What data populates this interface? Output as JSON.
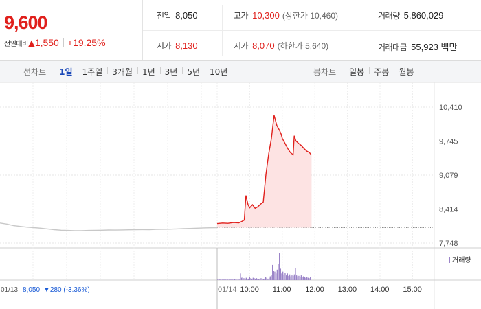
{
  "quote": {
    "price": "9,600",
    "change_label": "전일대비",
    "change_arrow": "▲",
    "change_amount": "1,550",
    "change_percent": "+19.25%"
  },
  "stats": {
    "prev_close": {
      "label": "전일",
      "value": "8,050"
    },
    "open": {
      "label": "시가",
      "value": "8,130"
    },
    "high": {
      "label": "고가",
      "value": "10,300",
      "limit": "(상한가 10,460)"
    },
    "low": {
      "label": "저가",
      "value": "8,070",
      "limit": "(하한가 5,640)"
    },
    "volume": {
      "label": "거래량",
      "value": "5,860,029"
    },
    "amount": {
      "label": "거래대금",
      "value": "55,923 백만"
    }
  },
  "tabs": {
    "line_label": "선차트",
    "line_tabs": [
      "1일",
      "1주일",
      "3개월",
      "1년",
      "3년",
      "5년",
      "10년"
    ],
    "active_line_tab": "1일",
    "candle_label": "봉차트",
    "candle_tabs": [
      "일봉",
      "주봉",
      "월봉"
    ]
  },
  "colors": {
    "up": "#e0201c",
    "down": "#1a5bd6",
    "prev_line": "#c8c8c8",
    "area_fill": "#fde3e3",
    "volume_bar": "#9b84c8"
  },
  "chart_data": {
    "type": "line",
    "y_ticks": [
      "10,410",
      "9,745",
      "9,079",
      "8,414",
      "7,748"
    ],
    "ylim": [
      7748,
      10410
    ],
    "reference_value": 8050,
    "x_ticks": [
      "01/14",
      "10:00",
      "11:00",
      "12:00",
      "13:00",
      "14:00",
      "15:00"
    ],
    "previous_day": {
      "date": "01/13",
      "close": "8,050",
      "change": "▼280 (-3.36%)",
      "values": [
        8140,
        8120,
        8090,
        8075,
        8060,
        8050,
        8040,
        8025,
        8010,
        8000,
        7995,
        7990,
        7992,
        7995,
        7998,
        8000,
        8003,
        8002,
        8005,
        8008,
        8010,
        8012,
        8010,
        8015,
        8018,
        8020,
        8025,
        8030,
        8035,
        8040,
        8045,
        8048,
        8050
      ]
    },
    "today": {
      "x_minutes": [
        0,
        10,
        20,
        30,
        40,
        45,
        50,
        53,
        57,
        60,
        65,
        70,
        75,
        80,
        85,
        90,
        95,
        100,
        105,
        110,
        115,
        118,
        120,
        125,
        130,
        135,
        140,
        142,
        145,
        150,
        155,
        160,
        165,
        170,
        173
      ],
      "values": [
        8130,
        8140,
        8135,
        8150,
        8145,
        8170,
        8200,
        8680,
        8500,
        8440,
        8500,
        8430,
        8460,
        8510,
        8550,
        9100,
        9500,
        9800,
        10250,
        10050,
        9950,
        9880,
        9800,
        9700,
        9600,
        9520,
        9480,
        9850,
        9750,
        9700,
        9660,
        9600,
        9550,
        9520,
        9480
      ]
    },
    "legend": "거래량",
    "volume": [
      1,
      1,
      2,
      1,
      1,
      2,
      1,
      1,
      1,
      1,
      1,
      2,
      1,
      1,
      1,
      2,
      1,
      1,
      2,
      1,
      14,
      5,
      7,
      4,
      3,
      5,
      2,
      3,
      6,
      4,
      3,
      5,
      4,
      3,
      4,
      3,
      2,
      3,
      4,
      3,
      2,
      3,
      6,
      4,
      3,
      5,
      8,
      10,
      32,
      20,
      18,
      14,
      22,
      34,
      58,
      24,
      14,
      18,
      12,
      16,
      10,
      14,
      9,
      12,
      8,
      10,
      9,
      12,
      26,
      10,
      8,
      9,
      7,
      10,
      6,
      8,
      6,
      5,
      7,
      5,
      4,
      6
    ]
  }
}
